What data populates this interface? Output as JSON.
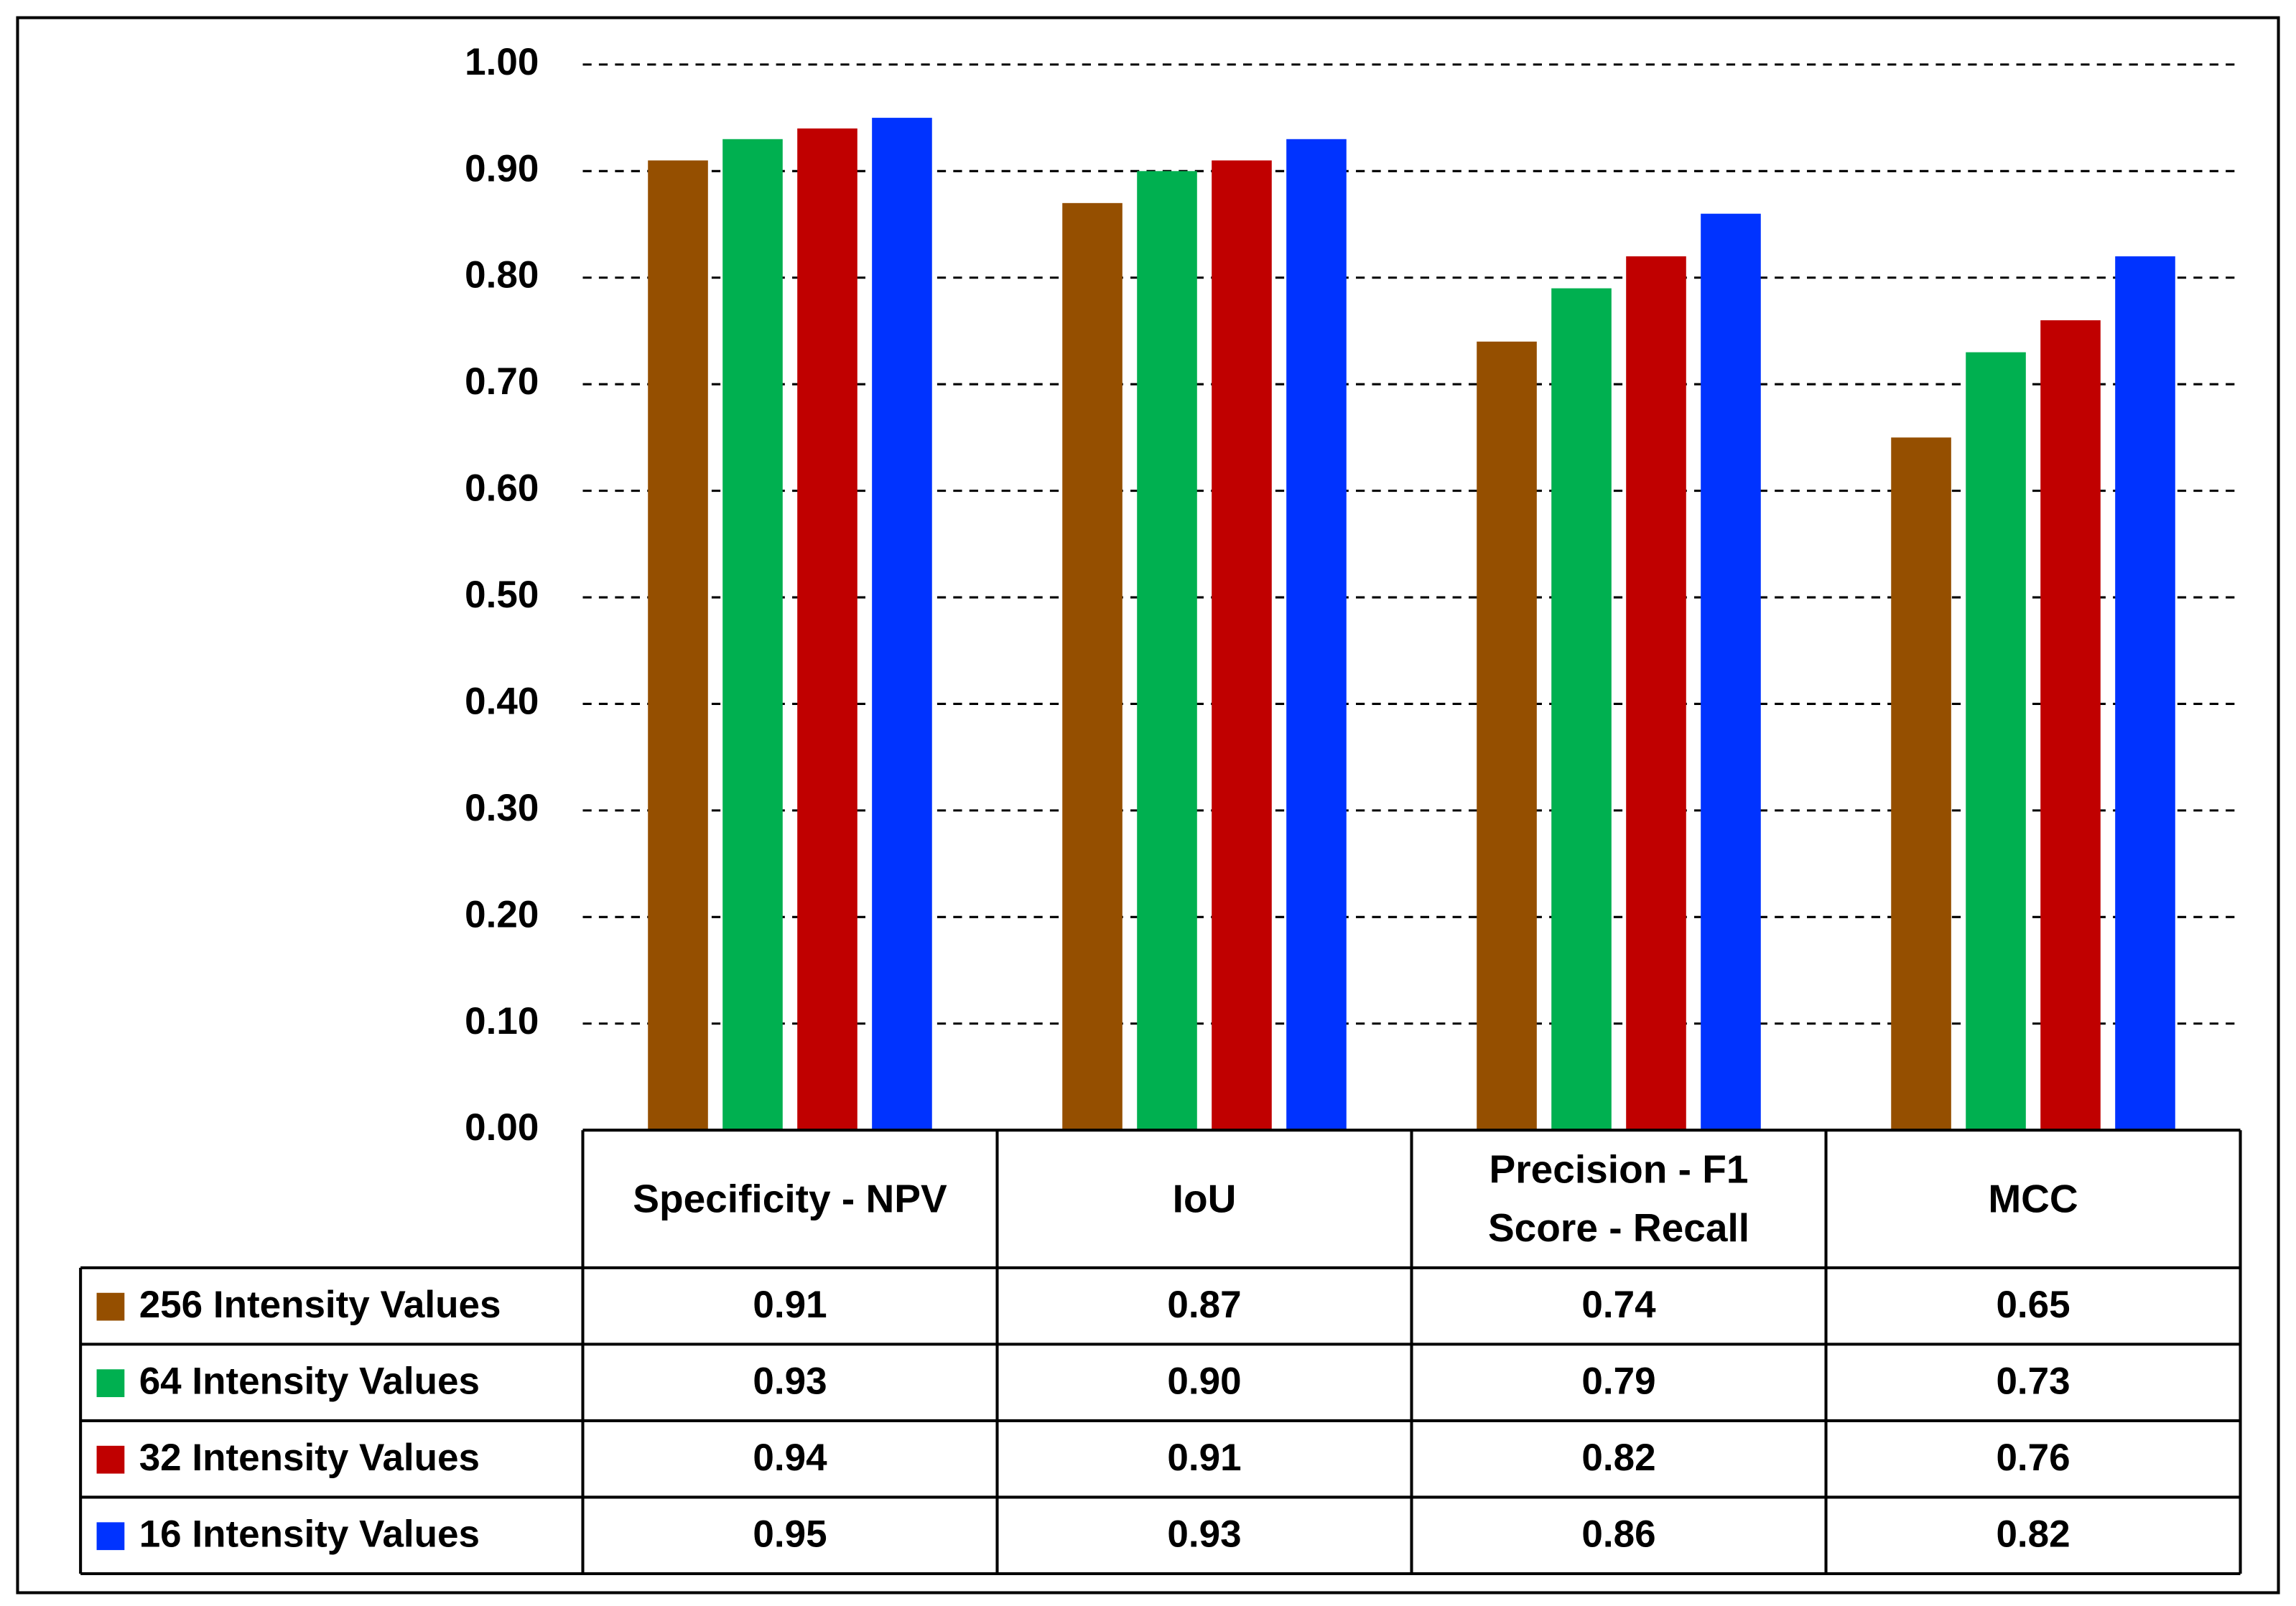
{
  "chart_data": {
    "type": "bar",
    "categories": [
      "Specificity - NPV",
      "IoU",
      "Precision - F1 Score - Recall",
      "MCC"
    ],
    "series": [
      {
        "name": "256 Intensity Values",
        "color": "#954F00",
        "values": [
          0.91,
          0.87,
          0.74,
          0.65
        ],
        "value_labels": [
          "0.91",
          "0.87",
          "0.74",
          "0.65"
        ]
      },
      {
        "name": "64 Intensity Values",
        "color": "#00B050",
        "values": [
          0.93,
          0.9,
          0.79,
          0.73
        ],
        "value_labels": [
          "0.93",
          "0.90",
          "0.79",
          "0.73"
        ]
      },
      {
        "name": "32 Intensity Values",
        "color": "#C00000",
        "values": [
          0.94,
          0.91,
          0.82,
          0.76
        ],
        "value_labels": [
          "0.94",
          "0.91",
          "0.82",
          "0.76"
        ]
      },
      {
        "name": "16 Intensity Values",
        "color": "#0033FF",
        "values": [
          0.95,
          0.93,
          0.86,
          0.82
        ],
        "value_labels": [
          "0.95",
          "0.93",
          "0.86",
          "0.82"
        ]
      }
    ],
    "ylim": [
      0,
      1
    ],
    "yticks": [
      {
        "value": 0,
        "label": "0.00"
      },
      {
        "value": 0.1,
        "label": "0.10"
      },
      {
        "value": 0.2,
        "label": "0.20"
      },
      {
        "value": 0.3,
        "label": "0.30"
      },
      {
        "value": 0.4,
        "label": "0.40"
      },
      {
        "value": 0.5,
        "label": "0.50"
      },
      {
        "value": 0.6,
        "label": "0.60"
      },
      {
        "value": 0.7,
        "label": "0.70"
      },
      {
        "value": 0.8,
        "label": "0.80"
      },
      {
        "value": 0.9,
        "label": "0.90"
      },
      {
        "value": 1,
        "label": "1.00"
      }
    ],
    "grid": true
  }
}
